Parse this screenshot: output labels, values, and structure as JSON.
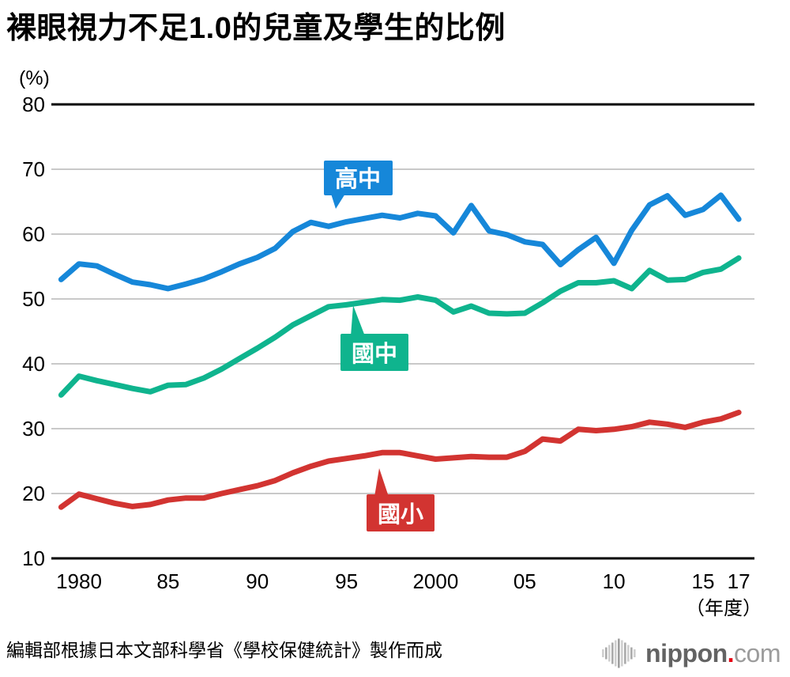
{
  "title": "裸眼視力不足1.0的兒童及學生的比例",
  "source_note": "編輯部根據日本文部科學省《學校保健統計》製作而成",
  "logo": {
    "icon": "soundwave-bars-icon",
    "text_main": "nippon",
    "dot": ".",
    "text_suffix": "com",
    "dot_color": "#e60012",
    "main_color": "#636363",
    "suffix_color": "#9c9c9c"
  },
  "chart_data": {
    "type": "line",
    "title": "裸眼視力不足1.0的兒童及學生的比例",
    "y_unit_label": "(%)",
    "x_unit_label": "（年度）",
    "ylim": [
      10,
      80
    ],
    "y_ticks": [
      80,
      70,
      60,
      50,
      40,
      30,
      20,
      10
    ],
    "x_ticks": [
      {
        "year": 1980,
        "label": "1980"
      },
      {
        "year": 1985,
        "label": "85"
      },
      {
        "year": 1990,
        "label": "90"
      },
      {
        "year": 1995,
        "label": "95"
      },
      {
        "year": 2000,
        "label": "2000"
      },
      {
        "year": 2005,
        "label": "05"
      },
      {
        "year": 2010,
        "label": "10"
      },
      {
        "year": 2015,
        "label": "15"
      },
      {
        "year": 2017,
        "label": "17"
      }
    ],
    "grid": true,
    "grid_color": "#c9c9c9",
    "axis_color": "#000000",
    "legend_position": "inline-callouts",
    "years": [
      1979,
      1980,
      1981,
      1982,
      1983,
      1984,
      1985,
      1986,
      1987,
      1988,
      1989,
      1990,
      1991,
      1992,
      1993,
      1994,
      1995,
      1996,
      1997,
      1998,
      1999,
      2000,
      2001,
      2002,
      2003,
      2004,
      2005,
      2006,
      2007,
      2008,
      2009,
      2010,
      2011,
      2012,
      2013,
      2014,
      2015,
      2016,
      2017
    ],
    "series": [
      {
        "name": "高中",
        "key": "high-school",
        "color": "#1687d9",
        "values": [
          53.0,
          55.4,
          55.1,
          53.8,
          52.6,
          52.2,
          51.6,
          52.3,
          53.1,
          54.2,
          55.4,
          56.4,
          57.8,
          60.4,
          61.8,
          61.2,
          61.9,
          62.4,
          62.9,
          62.5,
          63.2,
          62.8,
          60.2,
          64.4,
          60.5,
          59.9,
          58.8,
          58.4,
          55.3,
          57.6,
          59.5,
          55.5,
          60.6,
          64.5,
          65.9,
          62.9,
          63.8,
          66.0,
          62.3
        ]
      },
      {
        "name": "國中",
        "key": "junior-high",
        "color": "#0fb48e",
        "values": [
          35.2,
          38.1,
          37.4,
          36.8,
          36.2,
          35.7,
          36.7,
          36.8,
          37.8,
          39.2,
          40.8,
          42.4,
          44.1,
          46.0,
          47.4,
          48.8,
          49.1,
          49.5,
          49.9,
          49.8,
          50.3,
          49.8,
          48.0,
          48.9,
          47.8,
          47.7,
          47.8,
          49.4,
          51.2,
          52.5,
          52.5,
          52.8,
          51.6,
          54.4,
          52.9,
          53.0,
          54.1,
          54.6,
          56.3
        ]
      },
      {
        "name": "國小",
        "key": "elementary",
        "color": "#d23431",
        "values": [
          17.9,
          19.9,
          19.2,
          18.5,
          18.0,
          18.3,
          19.0,
          19.3,
          19.3,
          20.0,
          20.6,
          21.2,
          22.0,
          23.2,
          24.2,
          25.0,
          25.4,
          25.8,
          26.3,
          26.3,
          25.8,
          25.3,
          25.5,
          25.7,
          25.6,
          25.6,
          26.5,
          28.4,
          28.1,
          29.9,
          29.7,
          29.9,
          30.3,
          31.0,
          30.7,
          30.2,
          31.0,
          31.5,
          32.5
        ]
      }
    ]
  }
}
